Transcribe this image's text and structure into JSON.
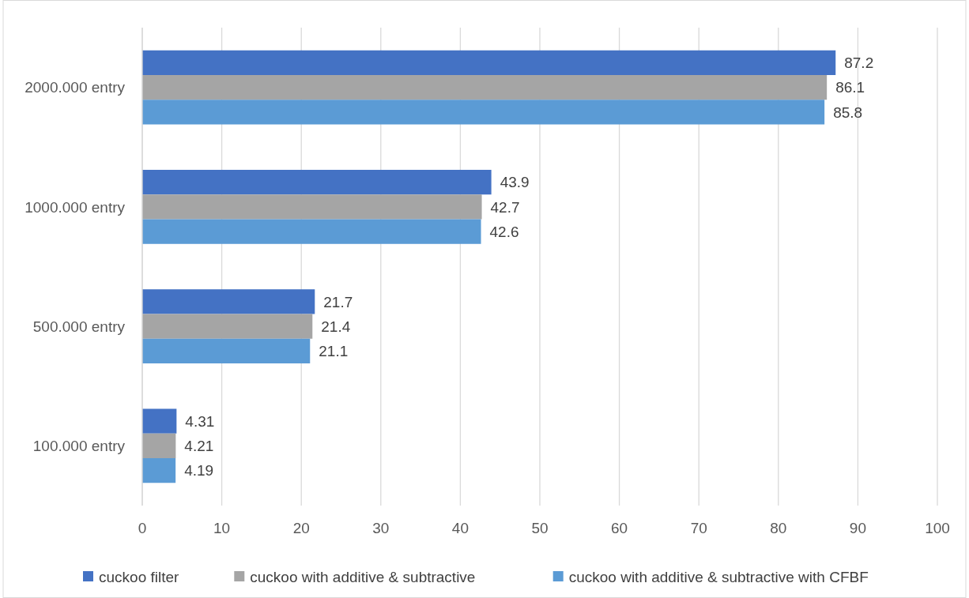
{
  "chart_data": {
    "type": "bar",
    "orientation": "horizontal",
    "categories": [
      "2000.000 entry",
      "1000.000 entry",
      "500.000 entry",
      "100.000 entry"
    ],
    "series": [
      {
        "name": "cuckoo filter",
        "color": "#4472c4",
        "values": [
          87.2,
          43.9,
          21.7,
          4.31
        ]
      },
      {
        "name": "cuckoo with additive & subtractive",
        "color": "#a5a5a5",
        "values": [
          86.1,
          42.7,
          21.4,
          4.21
        ]
      },
      {
        "name": "cuckoo with additive & subtractive with CFBF",
        "color": "#5b9bd5",
        "values": [
          85.8,
          42.6,
          21.1,
          4.19
        ]
      }
    ],
    "xlim": [
      0,
      100
    ],
    "xticks": [
      0,
      10,
      20,
      30,
      40,
      50,
      60,
      70,
      80,
      90,
      100
    ],
    "grid": "x",
    "legend": "bottom",
    "data_labels": true
  }
}
